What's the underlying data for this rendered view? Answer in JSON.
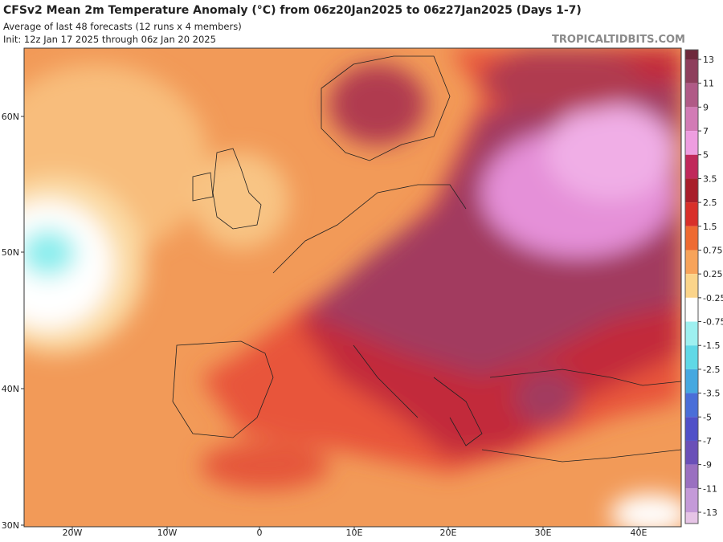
{
  "header": {
    "title": "CFSv2 Mean 2m Temperature Anomaly (°C) from 06z20Jan2025 to 06z27Jan2025 (Days 1-7)",
    "subtitle": "Average of last 48 forecasts (12 runs x 4 members)",
    "init": "Init: 12z Jan 17 2025 through 06z Jan 20 2025",
    "watermark": "TROPICALTIDBITS.COM"
  },
  "map": {
    "lat_labels": [
      "60N",
      "50N",
      "40N",
      "30N"
    ],
    "lon_labels": [
      "20W",
      "10W",
      "0",
      "10E",
      "20E",
      "30E",
      "40E"
    ]
  },
  "colorbar": {
    "ticks": [
      13,
      11,
      9,
      7,
      5,
      3.5,
      2.5,
      1.5,
      0.75,
      0.25,
      -0.25,
      -0.75,
      -1.5,
      -2.5,
      -3.5,
      -5,
      -7,
      -9,
      -11,
      -13
    ],
    "colors": [
      "#6e2a3c",
      "#8e3f5c",
      "#b05a86",
      "#d27bb5",
      "#ee9de0",
      "#c0285a",
      "#a81e2a",
      "#d8302a",
      "#ee6a32",
      "#f7a35a",
      "#fbd48a",
      "#ffffff",
      "#9ef0f0",
      "#60d8e6",
      "#46a8e0",
      "#4a6ed8",
      "#5050c8",
      "#6a50b8",
      "#9a70c0",
      "#c49ad8",
      "#e6c4e6"
    ]
  }
}
